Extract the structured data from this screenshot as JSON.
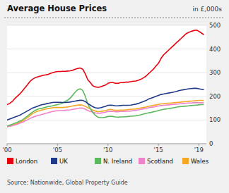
{
  "chart_data": {
    "type": "line",
    "title": "Average House Prices",
    "subtitle": "in £,000s",
    "annotations": [
      "Source: Nationwide, Global Property Guide"
    ],
    "x": [
      2000.0,
      2000.25,
      2000.5,
      2000.75,
      2001.0,
      2001.25,
      2001.5,
      2001.75,
      2002.0,
      2002.25,
      2002.5,
      2002.75,
      2003.0,
      2003.25,
      2003.5,
      2003.75,
      2004.0,
      2004.25,
      2004.5,
      2004.75,
      2005.0,
      2005.25,
      2005.5,
      2005.75,
      2006.0,
      2006.25,
      2006.5,
      2006.75,
      2007.0,
      2007.25,
      2007.5,
      2007.75,
      2008.0,
      2008.25,
      2008.5,
      2008.75,
      2009.0,
      2009.25,
      2009.5,
      2009.75,
      2010.0,
      2010.25,
      2010.5,
      2010.75,
      2011.0,
      2011.25,
      2011.5,
      2011.75,
      2012.0,
      2012.25,
      2012.5,
      2012.75,
      2013.0,
      2013.25,
      2013.5,
      2013.75,
      2014.0,
      2014.25,
      2014.5,
      2014.75,
      2015.0,
      2015.25,
      2015.5,
      2015.75,
      2016.0,
      2016.25,
      2016.5,
      2016.75,
      2017.0,
      2017.25,
      2017.5,
      2017.75,
      2018.0,
      2018.25,
      2018.5,
      2018.75,
      2019.0,
      2019.25,
      2019.5
    ],
    "series": [
      {
        "name": "London",
        "color": "#e8000d",
        "values": [
          165,
          170,
          178,
          190,
          200,
          210,
          222,
          235,
          248,
          262,
          272,
          278,
          282,
          285,
          288,
          290,
          292,
          296,
          300,
          303,
          305,
          305,
          306,
          306,
          307,
          308,
          310,
          315,
          318,
          320,
          315,
          295,
          270,
          258,
          245,
          240,
          238,
          240,
          244,
          248,
          255,
          258,
          258,
          255,
          255,
          258,
          258,
          260,
          260,
          262,
          264,
          265,
          268,
          272,
          278,
          285,
          295,
          305,
          315,
          328,
          340,
          360,
          375,
          385,
          395,
          405,
          415,
          425,
          435,
          445,
          455,
          465,
          470,
          475,
          478,
          480,
          475,
          468,
          460
        ]
      },
      {
        "name": "UK",
        "color": "#1e3a8a",
        "values": [
          100,
          104,
          108,
          112,
          116,
          120,
          126,
          132,
          138,
          144,
          150,
          154,
          158,
          162,
          165,
          167,
          170,
          172,
          174,
          175,
          175,
          175,
          174,
          174,
          175,
          176,
          178,
          180,
          182,
          184,
          183,
          178,
          170,
          163,
          156,
          152,
          150,
          152,
          155,
          158,
          162,
          163,
          162,
          160,
          160,
          161,
          162,
          162,
          162,
          163,
          165,
          167,
          170,
          174,
          178,
          182,
          188,
          192,
          196,
          200,
          204,
          208,
          210,
          212,
          214,
          216,
          218,
          220,
          224,
          226,
          228,
          230,
          232,
          233,
          234,
          234,
          232,
          230,
          228
        ]
      },
      {
        "name": "N. Ireland",
        "color": "#5cb85c",
        "values": [
          75,
          78,
          82,
          86,
          90,
          95,
          100,
          108,
          116,
          125,
          133,
          140,
          145,
          148,
          150,
          153,
          156,
          158,
          160,
          163,
          165,
          168,
          172,
          178,
          184,
          192,
          205,
          218,
          228,
          232,
          225,
          200,
          168,
          148,
          132,
          120,
          112,
          110,
          110,
          112,
          115,
          116,
          115,
          113,
          112,
          113,
          113,
          114,
          115,
          116,
          117,
          118,
          120,
          122,
          125,
          128,
          130,
          132,
          135,
          137,
          140,
          143,
          145,
          147,
          148,
          150,
          152,
          154,
          156,
          157,
          158,
          159,
          160,
          161,
          162,
          163,
          164,
          165,
          165
        ]
      },
      {
        "name": "Scotland",
        "color": "#ee82c8",
        "values": [
          72,
          74,
          76,
          79,
          82,
          86,
          90,
          95,
          100,
          106,
          111,
          115,
          118,
          121,
          124,
          127,
          130,
          133,
          136,
          138,
          139,
          140,
          140,
          141,
          142,
          143,
          145,
          147,
          149,
          151,
          150,
          146,
          140,
          136,
          133,
          130,
          128,
          129,
          131,
          133,
          136,
          137,
          136,
          135,
          135,
          136,
          136,
          137,
          137,
          138,
          140,
          141,
          143,
          145,
          147,
          149,
          152,
          154,
          155,
          157,
          159,
          161,
          162,
          163,
          164,
          165,
          166,
          167,
          168,
          169,
          170,
          171,
          172,
          172,
          173,
          173,
          173,
          173,
          172
        ]
      },
      {
        "name": "Wales",
        "color": "#f5a623",
        "values": [
          72,
          74,
          77,
          81,
          85,
          90,
          96,
          102,
          110,
          118,
          126,
          132,
          137,
          140,
          143,
          146,
          148,
          150,
          152,
          153,
          153,
          153,
          153,
          154,
          155,
          157,
          159,
          161,
          163,
          164,
          162,
          158,
          152,
          147,
          142,
          138,
          135,
          136,
          138,
          140,
          143,
          145,
          143,
          141,
          141,
          142,
          142,
          143,
          144,
          145,
          146,
          147,
          149,
          151,
          153,
          155,
          158,
          160,
          162,
          164,
          166,
          168,
          169,
          170,
          171,
          172,
          173,
          174,
          175,
          176,
          177,
          178,
          179,
          180,
          181,
          182,
          183,
          183,
          182
        ]
      }
    ],
    "xlim": [
      2000,
      2019.75
    ],
    "xticks": [
      {
        "value": 2000,
        "label": "'00"
      },
      {
        "value": 2005,
        "label": "'05"
      },
      {
        "value": 2010,
        "label": "'10"
      },
      {
        "value": 2015,
        "label": "'15"
      },
      {
        "value": 2019,
        "label": "'19"
      }
    ],
    "ylim": [
      0,
      500
    ],
    "yticks": [
      0,
      100,
      200,
      300,
      400,
      500
    ],
    "grid": true,
    "legend": "bottom"
  }
}
